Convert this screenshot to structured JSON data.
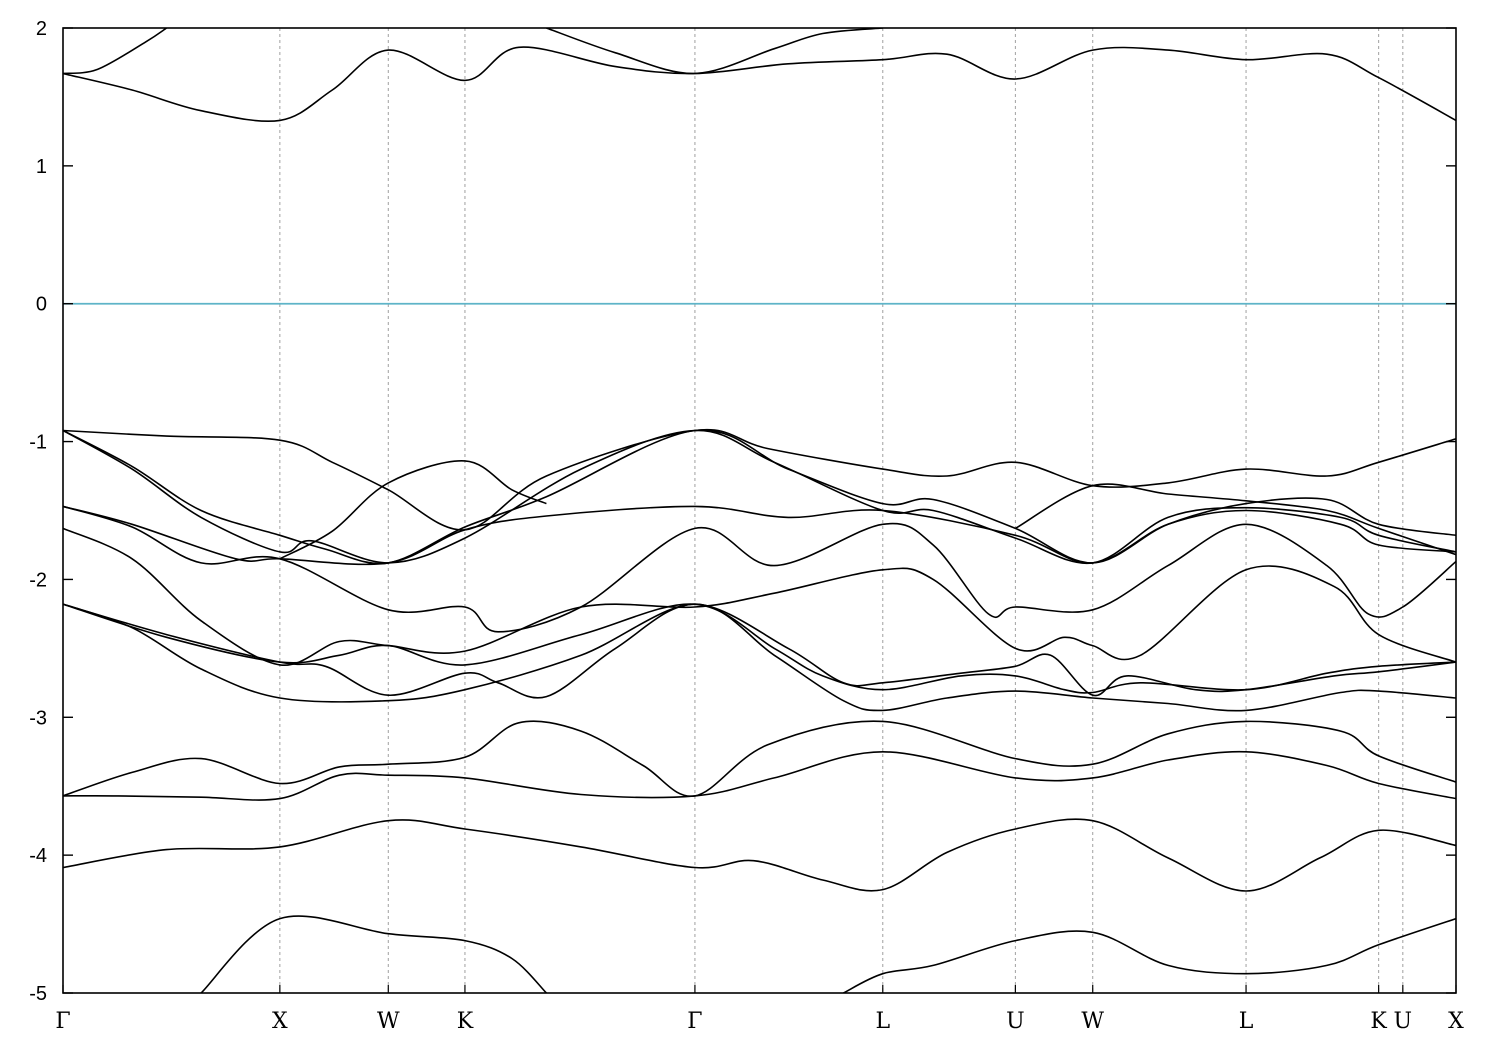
{
  "chart_data": {
    "type": "line",
    "title": "",
    "xlabel": "",
    "ylabel": "",
    "ylim": [
      -5,
      2
    ],
    "xlim": [
      0,
      20.17
    ],
    "yticks": [
      -5,
      -4,
      -3,
      -2,
      -1,
      0,
      1,
      2
    ],
    "grid": "vertical dashed lines at high-symmetry points",
    "fermi_level": {
      "value": 0,
      "color": "#5eb4c8"
    },
    "line_color": "#000000",
    "kpoints": [
      {
        "label": "Γ",
        "x": 0.0
      },
      {
        "label": "X",
        "x": 3.14
      },
      {
        "label": "W",
        "x": 4.71
      },
      {
        "label": "K",
        "x": 5.82
      },
      {
        "label": "Γ",
        "x": 9.15
      },
      {
        "label": "L",
        "x": 11.87
      },
      {
        "label": "U",
        "x": 13.79
      },
      {
        "label": "W",
        "x": 14.91
      },
      {
        "label": "L",
        "x": 17.13
      },
      {
        "label": "K",
        "x": 19.05
      },
      {
        "label": "U",
        "x": 19.4
      },
      {
        "label": "X",
        "x": 20.17
      }
    ],
    "series": [
      {
        "points": [
          [
            0.0,
            -3.57
          ],
          [
            0.8,
            -3.57
          ],
          [
            2.0,
            -3.58
          ],
          [
            3.14,
            -3.59
          ],
          [
            4.0,
            -3.42
          ],
          [
            4.71,
            -3.42
          ],
          [
            5.82,
            -3.44
          ],
          [
            7.5,
            -3.56
          ],
          [
            9.15,
            -3.57
          ],
          [
            10.3,
            -3.44
          ],
          [
            11.87,
            -3.25
          ],
          [
            13.79,
            -3.44
          ],
          [
            14.91,
            -3.44
          ],
          [
            16.0,
            -3.31
          ],
          [
            17.13,
            -3.25
          ],
          [
            18.3,
            -3.35
          ],
          [
            19.05,
            -3.48
          ],
          [
            20.17,
            -3.59
          ]
        ]
      },
      {
        "points": [
          [
            0.0,
            -3.57
          ],
          [
            1.0,
            -3.4
          ],
          [
            2.0,
            -3.3
          ],
          [
            3.14,
            -3.48
          ],
          [
            4.0,
            -3.36
          ],
          [
            4.71,
            -3.34
          ],
          [
            5.82,
            -3.29
          ],
          [
            6.6,
            -3.04
          ],
          [
            7.5,
            -3.1
          ],
          [
            8.4,
            -3.35
          ],
          [
            9.15,
            -3.57
          ],
          [
            10.2,
            -3.2
          ],
          [
            11.87,
            -3.03
          ],
          [
            13.79,
            -3.3
          ],
          [
            14.91,
            -3.34
          ],
          [
            16.0,
            -3.12
          ],
          [
            17.13,
            -3.03
          ],
          [
            18.5,
            -3.1
          ],
          [
            19.05,
            -3.28
          ],
          [
            20.17,
            -3.47
          ]
        ]
      },
      {
        "points": [
          [
            0.0,
            -4.09
          ],
          [
            1.5,
            -3.96
          ],
          [
            3.14,
            -3.94
          ],
          [
            4.71,
            -3.75
          ],
          [
            5.82,
            -3.81
          ],
          [
            7.5,
            -3.94
          ],
          [
            9.15,
            -4.09
          ],
          [
            10.0,
            -4.04
          ],
          [
            11.0,
            -4.18
          ],
          [
            11.87,
            -4.25
          ],
          [
            12.8,
            -3.98
          ],
          [
            13.79,
            -3.81
          ],
          [
            14.91,
            -3.75
          ],
          [
            16.0,
            -4.02
          ],
          [
            17.13,
            -4.26
          ],
          [
            18.2,
            -4.02
          ],
          [
            19.05,
            -3.82
          ],
          [
            20.17,
            -3.93
          ]
        ]
      },
      {
        "points": [
          [
            2.0,
            -5.0
          ],
          [
            3.14,
            -4.46
          ],
          [
            4.71,
            -4.57
          ],
          [
            5.82,
            -4.62
          ],
          [
            6.5,
            -4.75
          ],
          [
            7.0,
            -5.0
          ]
        ]
      },
      {
        "points": [
          [
            11.3,
            -5.0
          ],
          [
            11.87,
            -4.86
          ],
          [
            12.6,
            -4.8
          ],
          [
            13.79,
            -4.62
          ],
          [
            14.91,
            -4.56
          ],
          [
            16.0,
            -4.8
          ],
          [
            17.13,
            -4.86
          ],
          [
            18.3,
            -4.8
          ],
          [
            19.05,
            -4.65
          ],
          [
            20.17,
            -4.46
          ]
        ]
      },
      {
        "points": [
          [
            0.0,
            -2.18
          ],
          [
            1.0,
            -2.35
          ],
          [
            2.0,
            -2.65
          ],
          [
            3.14,
            -2.86
          ],
          [
            4.71,
            -2.88
          ],
          [
            5.82,
            -2.8
          ],
          [
            7.5,
            -2.55
          ],
          [
            9.15,
            -2.18
          ],
          [
            10.3,
            -2.55
          ],
          [
            11.3,
            -2.88
          ],
          [
            11.87,
            -2.95
          ],
          [
            12.8,
            -2.86
          ],
          [
            13.79,
            -2.81
          ],
          [
            14.91,
            -2.86
          ],
          [
            16.0,
            -2.9
          ],
          [
            17.13,
            -2.95
          ],
          [
            18.5,
            -2.82
          ],
          [
            19.05,
            -2.81
          ],
          [
            20.17,
            -2.86
          ]
        ]
      },
      {
        "points": [
          [
            0.0,
            -2.18
          ],
          [
            1.5,
            -2.4
          ],
          [
            3.14,
            -2.6
          ],
          [
            3.8,
            -2.63
          ],
          [
            4.71,
            -2.84
          ],
          [
            5.82,
            -2.68
          ],
          [
            6.3,
            -2.75
          ],
          [
            7.0,
            -2.85
          ],
          [
            8.0,
            -2.5
          ],
          [
            9.15,
            -2.18
          ],
          [
            10.5,
            -2.5
          ],
          [
            11.3,
            -2.75
          ],
          [
            11.87,
            -2.75
          ],
          [
            13.0,
            -2.68
          ],
          [
            13.79,
            -2.63
          ],
          [
            14.3,
            -2.55
          ],
          [
            14.91,
            -2.84
          ],
          [
            15.4,
            -2.7
          ],
          [
            16.4,
            -2.8
          ],
          [
            17.13,
            -2.8
          ],
          [
            18.4,
            -2.7
          ],
          [
            19.05,
            -2.67
          ],
          [
            20.17,
            -2.6
          ]
        ]
      },
      {
        "points": [
          [
            0.0,
            -2.18
          ],
          [
            1.5,
            -2.42
          ],
          [
            3.14,
            -2.6
          ],
          [
            4.0,
            -2.55
          ],
          [
            4.71,
            -2.48
          ],
          [
            5.82,
            -2.62
          ],
          [
            7.5,
            -2.4
          ],
          [
            9.15,
            -2.18
          ],
          [
            10.3,
            -2.5
          ],
          [
            11.0,
            -2.7
          ],
          [
            11.87,
            -2.8
          ],
          [
            13.0,
            -2.7
          ],
          [
            13.79,
            -2.7
          ],
          [
            14.5,
            -2.8
          ],
          [
            14.91,
            -2.82
          ],
          [
            15.6,
            -2.75
          ],
          [
            17.13,
            -2.8
          ],
          [
            18.3,
            -2.68
          ],
          [
            19.05,
            -2.63
          ],
          [
            20.17,
            -2.6
          ]
        ]
      },
      {
        "points": [
          [
            0.0,
            -1.63
          ],
          [
            1.0,
            -1.85
          ],
          [
            2.0,
            -2.3
          ],
          [
            3.14,
            -2.62
          ],
          [
            4.0,
            -2.45
          ],
          [
            4.71,
            -2.48
          ],
          [
            5.82,
            -2.52
          ],
          [
            7.5,
            -2.2
          ],
          [
            9.15,
            -2.2
          ],
          [
            10.3,
            -2.1
          ],
          [
            11.87,
            -1.93
          ],
          [
            12.6,
            -2.0
          ],
          [
            13.79,
            -2.5
          ],
          [
            14.5,
            -2.42
          ],
          [
            14.91,
            -2.48
          ],
          [
            15.6,
            -2.55
          ],
          [
            17.13,
            -1.93
          ],
          [
            18.4,
            -2.05
          ],
          [
            19.05,
            -2.4
          ],
          [
            20.17,
            -2.6
          ]
        ]
      },
      {
        "points": [
          [
            0.0,
            -1.47
          ],
          [
            1.0,
            -1.62
          ],
          [
            2.0,
            -1.88
          ],
          [
            3.14,
            -1.85
          ],
          [
            4.71,
            -2.22
          ],
          [
            5.82,
            -2.2
          ],
          [
            6.3,
            -2.38
          ],
          [
            7.5,
            -2.2
          ],
          [
            9.15,
            -1.63
          ],
          [
            10.3,
            -1.9
          ],
          [
            11.87,
            -1.6
          ],
          [
            12.6,
            -1.75
          ],
          [
            13.4,
            -2.25
          ],
          [
            13.79,
            -2.2
          ],
          [
            14.91,
            -2.22
          ],
          [
            16.0,
            -1.9
          ],
          [
            17.13,
            -1.6
          ],
          [
            18.3,
            -1.9
          ],
          [
            18.9,
            -2.25
          ],
          [
            19.4,
            -2.2
          ],
          [
            20.17,
            -1.87
          ]
        ]
      },
      {
        "points": [
          [
            0.0,
            -1.47
          ],
          [
            1.0,
            -1.6
          ],
          [
            2.5,
            -1.85
          ],
          [
            3.14,
            -1.85
          ],
          [
            4.71,
            -1.88
          ],
          [
            5.82,
            -1.64
          ],
          [
            7.0,
            -1.54
          ],
          [
            9.15,
            -1.47
          ],
          [
            10.5,
            -1.55
          ],
          [
            11.87,
            -1.5
          ],
          [
            13.79,
            -1.68
          ],
          [
            14.91,
            -1.88
          ],
          [
            16.0,
            -1.6
          ],
          [
            17.13,
            -1.5
          ],
          [
            18.5,
            -1.6
          ],
          [
            19.05,
            -1.75
          ],
          [
            20.17,
            -1.8
          ]
        ]
      },
      {
        "points": [
          [
            0.0,
            -0.92
          ],
          [
            1.0,
            -1.2
          ],
          [
            2.0,
            -1.55
          ],
          [
            3.14,
            -1.8
          ],
          [
            3.6,
            -1.72
          ],
          [
            4.71,
            -1.88
          ],
          [
            5.82,
            -1.7
          ],
          [
            7.5,
            -1.2
          ],
          [
            9.15,
            -0.92
          ],
          [
            10.3,
            -1.15
          ],
          [
            11.87,
            -1.5
          ],
          [
            12.6,
            -1.5
          ],
          [
            13.79,
            -1.7
          ],
          [
            14.91,
            -1.88
          ],
          [
            16.0,
            -1.55
          ],
          [
            17.13,
            -1.48
          ],
          [
            18.5,
            -1.55
          ],
          [
            19.05,
            -1.68
          ],
          [
            20.17,
            -1.8
          ]
        ]
      },
      {
        "points": [
          [
            0.0,
            -0.92
          ],
          [
            1.0,
            -1.18
          ],
          [
            2.0,
            -1.5
          ],
          [
            3.14,
            -1.68
          ],
          [
            3.8,
            -1.78
          ],
          [
            4.71,
            -1.88
          ],
          [
            5.82,
            -1.62
          ],
          [
            7.0,
            -1.4
          ],
          [
            9.15,
            -0.92
          ],
          [
            10.5,
            -1.2
          ],
          [
            11.87,
            -1.45
          ],
          [
            12.6,
            -1.42
          ],
          [
            13.79,
            -1.63
          ],
          [
            14.91,
            -1.88
          ],
          [
            16.0,
            -1.6
          ],
          [
            17.13,
            -1.45
          ],
          [
            18.3,
            -1.42
          ],
          [
            19.05,
            -1.6
          ],
          [
            20.17,
            -1.68
          ]
        ]
      },
      {
        "points": [
          [
            0.0,
            -0.92
          ],
          [
            1.5,
            -0.96
          ],
          [
            3.14,
            -0.99
          ],
          [
            3.9,
            -1.15
          ],
          [
            4.71,
            -1.35
          ],
          [
            5.82,
            -1.64
          ],
          [
            7.0,
            -1.25
          ],
          [
            9.15,
            -0.92
          ],
          [
            10.2,
            -1.05
          ],
          [
            11.87,
            -1.2
          ],
          [
            12.8,
            -1.25
          ],
          [
            13.79,
            -1.15
          ],
          [
            14.91,
            -1.32
          ],
          [
            16.0,
            -1.3
          ],
          [
            17.13,
            -1.2
          ],
          [
            18.3,
            -1.25
          ],
          [
            19.05,
            -1.15
          ],
          [
            20.17,
            -0.98
          ]
        ]
      },
      {
        "points": [
          [
            3.14,
            -1.85
          ],
          [
            3.9,
            -1.65
          ],
          [
            4.71,
            -1.3
          ],
          [
            5.82,
            -1.14
          ],
          [
            6.5,
            -1.35
          ],
          [
            7.0,
            -1.45
          ]
        ]
      },
      {
        "points": [
          [
            13.79,
            -1.63
          ],
          [
            14.91,
            -1.32
          ],
          [
            16.0,
            -1.38
          ],
          [
            17.13,
            -1.43
          ],
          [
            18.3,
            -1.5
          ],
          [
            19.05,
            -1.63
          ],
          [
            20.17,
            -1.82
          ]
        ]
      },
      {
        "points": [
          [
            0.0,
            1.67
          ],
          [
            1.0,
            1.55
          ],
          [
            2.0,
            1.4
          ],
          [
            3.14,
            1.33
          ],
          [
            3.9,
            1.55
          ],
          [
            4.71,
            1.84
          ],
          [
            5.82,
            1.62
          ],
          [
            6.6,
            1.86
          ],
          [
            8.0,
            1.72
          ],
          [
            9.15,
            1.67
          ],
          [
            10.5,
            1.74
          ],
          [
            11.87,
            1.77
          ],
          [
            12.8,
            1.81
          ],
          [
            13.79,
            1.63
          ],
          [
            14.91,
            1.84
          ],
          [
            16.0,
            1.84
          ],
          [
            17.13,
            1.77
          ],
          [
            18.3,
            1.81
          ],
          [
            19.05,
            1.64
          ],
          [
            20.17,
            1.33
          ]
        ]
      },
      {
        "points": [
          [
            0.0,
            1.67
          ],
          [
            0.5,
            1.7
          ],
          [
            1.2,
            1.9
          ],
          [
            1.5,
            2.0
          ]
        ]
      },
      {
        "points": [
          [
            7.0,
            2.0
          ],
          [
            8.0,
            1.82
          ],
          [
            9.15,
            1.67
          ],
          [
            10.3,
            1.85
          ],
          [
            11.0,
            1.96
          ],
          [
            11.87,
            2.0
          ]
        ]
      }
    ]
  }
}
